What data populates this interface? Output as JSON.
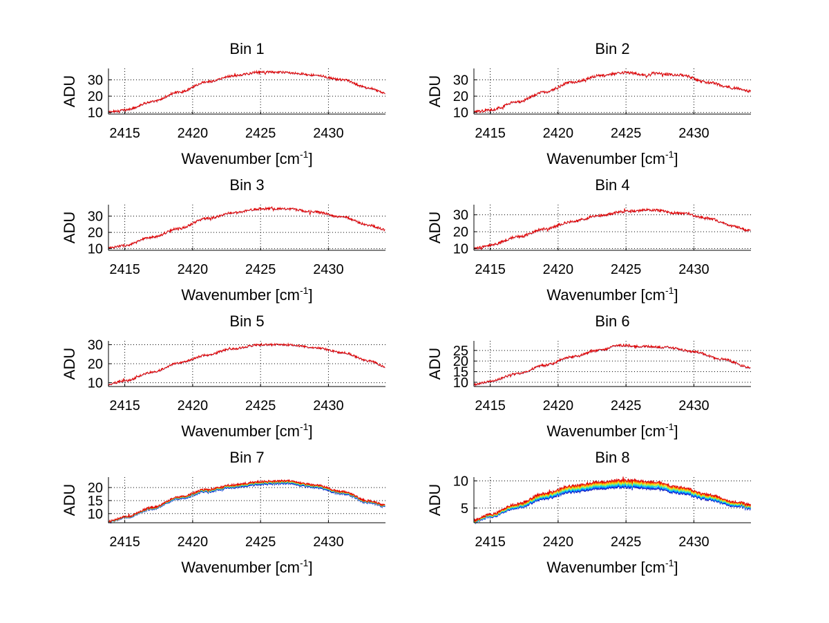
{
  "figure": {
    "background": "#ffffff"
  },
  "chart_data": [
    {
      "type": "line",
      "title": "Bin 1",
      "xlabel": "Wavenumber [cm",
      "xlabel_sup": "-1",
      "xlabel_close": "]",
      "ylabel": "ADU",
      "xlim": [
        2413.8,
        2434.2
      ],
      "ylim": [
        9,
        37
      ],
      "xticks": [
        2415,
        2420,
        2425,
        2430
      ],
      "yticks": [
        10,
        20,
        30
      ],
      "grid": true,
      "series_count": 1,
      "spread": 0,
      "envelope": [
        [
          2413.8,
          10.3
        ],
        [
          2415,
          11.5
        ],
        [
          2417,
          16.5
        ],
        [
          2419,
          22.5
        ],
        [
          2421,
          28.5
        ],
        [
          2423,
          32.5
        ],
        [
          2425,
          34.8
        ],
        [
          2427,
          34.5
        ],
        [
          2429,
          33
        ],
        [
          2431,
          30
        ],
        [
          2433,
          25
        ],
        [
          2434.2,
          22
        ]
      ],
      "noise": 0.9
    },
    {
      "type": "line",
      "title": "Bin 2",
      "xlabel": "Wavenumber [cm",
      "xlabel_sup": "-1",
      "xlabel_close": "]",
      "ylabel": "ADU",
      "xlim": [
        2413.8,
        2434.2
      ],
      "ylim": [
        9,
        37
      ],
      "xticks": [
        2415,
        2420,
        2425,
        2430
      ],
      "yticks": [
        10,
        20,
        30
      ],
      "grid": true,
      "series_count": 1,
      "spread": 0,
      "envelope": [
        [
          2413.8,
          10.3
        ],
        [
          2415,
          11.5
        ],
        [
          2417,
          16.5
        ],
        [
          2419,
          22.5
        ],
        [
          2421,
          28.5
        ],
        [
          2423,
          32.5
        ],
        [
          2425,
          34.5
        ],
        [
          2426.5,
          33
        ],
        [
          2427,
          34
        ],
        [
          2429,
          33
        ],
        [
          2431,
          28.5
        ],
        [
          2433,
          25
        ],
        [
          2434.2,
          23
        ]
      ],
      "noise": 1.0
    },
    {
      "type": "line",
      "title": "Bin 3",
      "xlabel": "Wavenumber [cm",
      "xlabel_sup": "-1",
      "xlabel_close": "]",
      "ylabel": "ADU",
      "xlim": [
        2413.8,
        2434.2
      ],
      "ylim": [
        9,
        37
      ],
      "xticks": [
        2415,
        2420,
        2425,
        2430
      ],
      "yticks": [
        10,
        20,
        30
      ],
      "grid": true,
      "series_count": 1,
      "spread": 0,
      "envelope": [
        [
          2413.8,
          10.3
        ],
        [
          2415,
          12
        ],
        [
          2417,
          17
        ],
        [
          2419,
          22.5
        ],
        [
          2421,
          28.5
        ],
        [
          2423,
          32
        ],
        [
          2425,
          34.5
        ],
        [
          2427,
          34.5
        ],
        [
          2429,
          32.5
        ],
        [
          2431,
          29.5
        ],
        [
          2433,
          24.5
        ],
        [
          2434.2,
          21.5
        ]
      ],
      "noise": 0.9
    },
    {
      "type": "line",
      "title": "Bin 4",
      "xlabel": "Wavenumber [cm",
      "xlabel_sup": "-1",
      "xlabel_close": "]",
      "ylabel": "ADU",
      "xlim": [
        2413.8,
        2434.2
      ],
      "ylim": [
        9,
        36
      ],
      "xticks": [
        2415,
        2420,
        2425,
        2430
      ],
      "yticks": [
        10,
        20,
        30
      ],
      "grid": true,
      "series_count": 1,
      "spread": 0,
      "envelope": [
        [
          2413.8,
          10
        ],
        [
          2415,
          12
        ],
        [
          2417,
          17
        ],
        [
          2419,
          21.5
        ],
        [
          2421,
          26
        ],
        [
          2423,
          29.5
        ],
        [
          2425,
          32
        ],
        [
          2426.8,
          33
        ],
        [
          2429,
          31
        ],
        [
          2431,
          28
        ],
        [
          2433,
          23
        ],
        [
          2434.2,
          20.5
        ]
      ],
      "noise": 1.0
    },
    {
      "type": "line",
      "title": "Bin 5",
      "xlabel": "Wavenumber [cm",
      "xlabel_sup": "-1",
      "xlabel_close": "]",
      "ylabel": "ADU",
      "xlim": [
        2413.8,
        2434.2
      ],
      "ylim": [
        8,
        32
      ],
      "xticks": [
        2415,
        2420,
        2425,
        2430
      ],
      "yticks": [
        10,
        20,
        30
      ],
      "grid": true,
      "series_count": 1,
      "spread": 0,
      "envelope": [
        [
          2413.8,
          9.3
        ],
        [
          2415,
          11
        ],
        [
          2417,
          15.5
        ],
        [
          2419,
          20.5
        ],
        [
          2421,
          24.5
        ],
        [
          2423,
          28
        ],
        [
          2425,
          30
        ],
        [
          2427,
          30
        ],
        [
          2429,
          28.5
        ],
        [
          2431,
          26
        ],
        [
          2433,
          21.5
        ],
        [
          2434.2,
          18.5
        ]
      ],
      "noise": 0.7
    },
    {
      "type": "line",
      "title": "Bin 6",
      "xlabel": "Wavenumber [cm",
      "xlabel_sup": "-1",
      "xlabel_close": "]",
      "ylabel": "ADU",
      "xlim": [
        2413.8,
        2434.2
      ],
      "ylim": [
        8,
        29.5
      ],
      "xticks": [
        2415,
        2420,
        2425,
        2430
      ],
      "yticks": [
        10,
        15,
        20,
        25
      ],
      "grid": true,
      "series_count": 1,
      "spread": 0,
      "envelope": [
        [
          2413.8,
          8.8
        ],
        [
          2415,
          10.5
        ],
        [
          2417,
          14
        ],
        [
          2419,
          18
        ],
        [
          2421,
          22
        ],
        [
          2423,
          25
        ],
        [
          2424.5,
          27.5
        ],
        [
          2426,
          27
        ],
        [
          2428,
          26.5
        ],
        [
          2430,
          24.5
        ],
        [
          2432,
          21
        ],
        [
          2434.2,
          17
        ]
      ],
      "noise": 0.7
    },
    {
      "type": "line",
      "title": "Bin 7",
      "xlabel": "Wavenumber [cm",
      "xlabel_sup": "-1",
      "xlabel_close": "]",
      "ylabel": "ADU",
      "xlim": [
        2413.8,
        2434.2
      ],
      "ylim": [
        6.5,
        24
      ],
      "xticks": [
        2415,
        2420,
        2425,
        2430
      ],
      "yticks": [
        10,
        15,
        20
      ],
      "grid": true,
      "series_count": 6,
      "spread": 1.0,
      "envelope": [
        [
          2413.8,
          6.8
        ],
        [
          2415,
          8.5
        ],
        [
          2417,
          12
        ],
        [
          2419,
          16
        ],
        [
          2421,
          18.8
        ],
        [
          2423,
          20.5
        ],
        [
          2425,
          21.8
        ],
        [
          2427,
          22
        ],
        [
          2429,
          20.5
        ],
        [
          2431,
          18
        ],
        [
          2433,
          14.5
        ],
        [
          2434.2,
          13
        ]
      ],
      "noise": 0.5
    },
    {
      "type": "line",
      "title": "Bin 8",
      "xlabel": "Wavenumber [cm",
      "xlabel_sup": "-1",
      "xlabel_close": "]",
      "ylabel": "ADU",
      "xlim": [
        2413.8,
        2434.2
      ],
      "ylim": [
        2.3,
        10.7
      ],
      "xticks": [
        2415,
        2420,
        2425,
        2430
      ],
      "yticks": [
        5,
        10
      ],
      "grid": true,
      "series_count": 8,
      "spread": 1.2,
      "envelope": [
        [
          2413.8,
          2.6
        ],
        [
          2415,
          3.6
        ],
        [
          2417,
          5.4
        ],
        [
          2419,
          7.2
        ],
        [
          2421,
          8.5
        ],
        [
          2423,
          9.2
        ],
        [
          2425,
          9.5
        ],
        [
          2427,
          9.2
        ],
        [
          2429,
          8.3
        ],
        [
          2431,
          7
        ],
        [
          2433,
          5.8
        ],
        [
          2434.2,
          5.3
        ]
      ],
      "noise": 0.3
    }
  ],
  "series_colors": [
    "#0000b0",
    "#0050ff",
    "#00b4ff",
    "#30e0c0",
    "#a0f050",
    "#ffd000",
    "#ff7000",
    "#e00000"
  ]
}
